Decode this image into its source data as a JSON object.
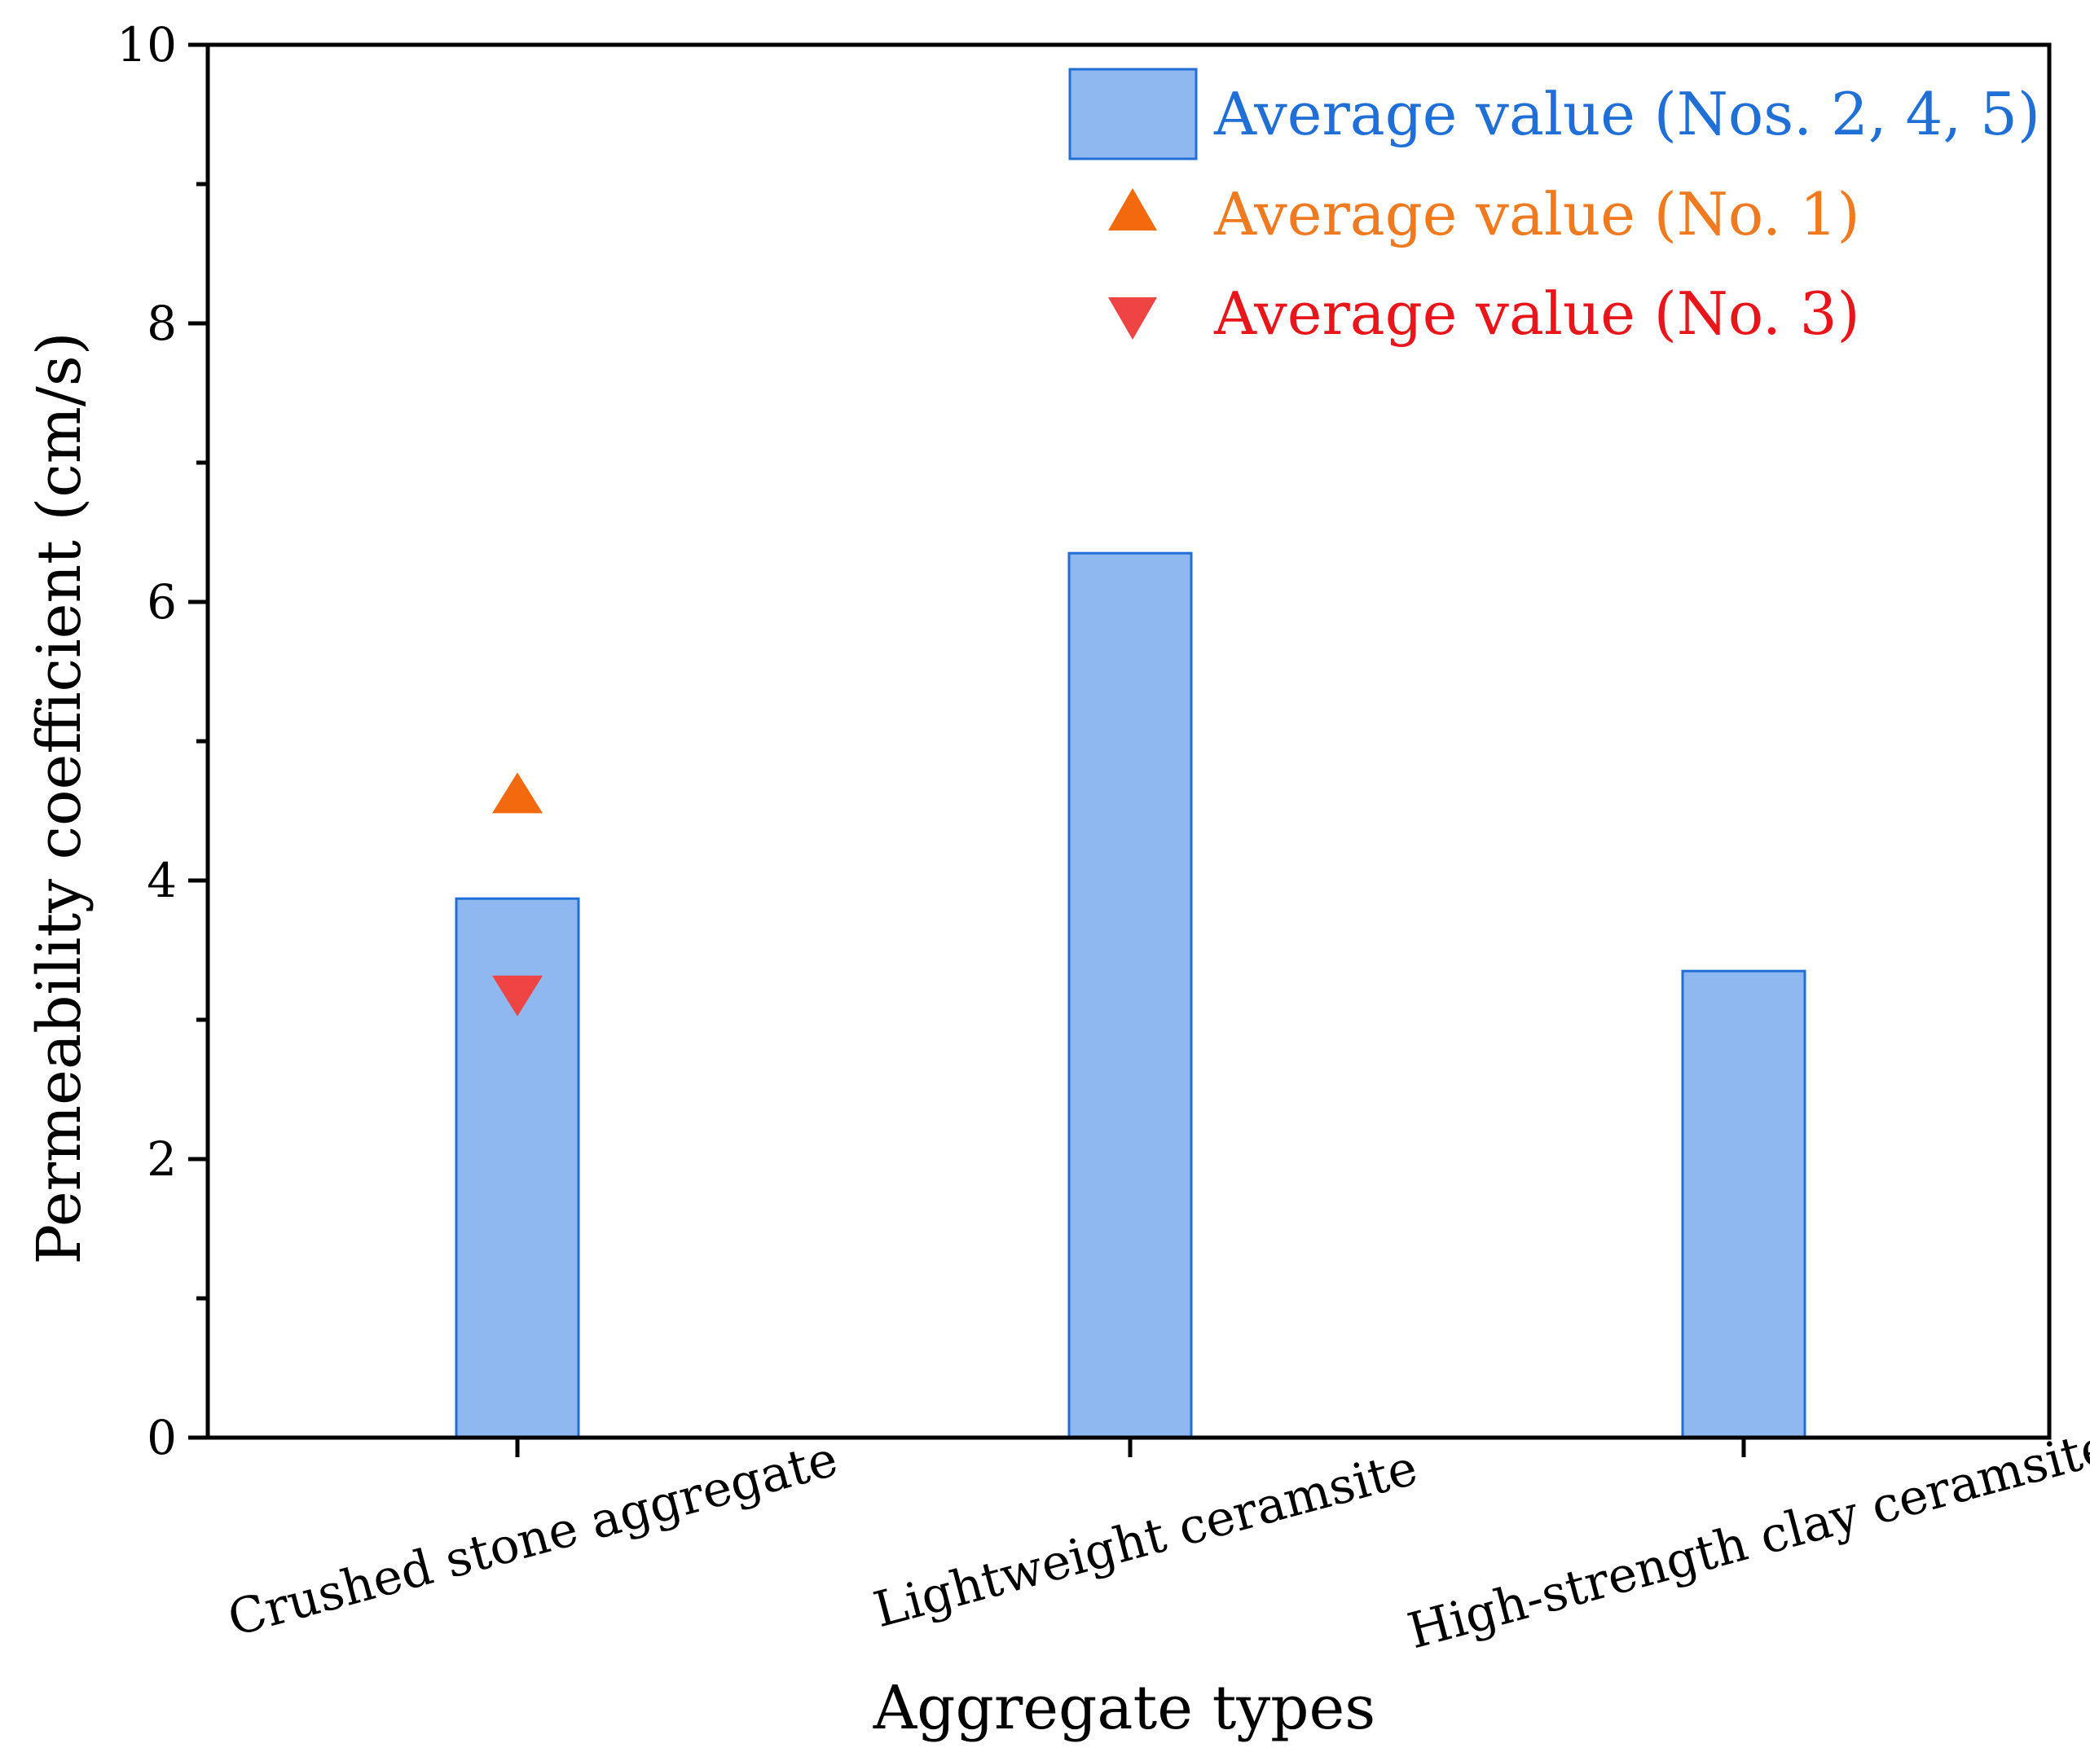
{
  "chart_data": {
    "type": "bar",
    "title": "",
    "xlabel": "Aggregate types",
    "ylabel": "Permeability coefficient (cm/s)",
    "ylim": [
      0,
      10
    ],
    "yticks": [
      0,
      2,
      4,
      6,
      8,
      10
    ],
    "y_minor_step": 1,
    "grid": false,
    "legend_position": "top-right",
    "categories": [
      "Crushed stone aggregate",
      "Lightweight ceramsite",
      "High-strength clay ceramsite"
    ],
    "series": [
      {
        "name": "Average value (Nos. 2, 4, 5)",
        "kind": "bar",
        "marker": "rect",
        "color": "#8FB8F0",
        "edge_color": "#1F6FD6",
        "legend_color": "#1F6FD6",
        "values": [
          3.87,
          6.35,
          3.35
        ]
      },
      {
        "name": "Average value (No. 1)",
        "kind": "scatter",
        "marker": "triangle-up",
        "color": "#F36A0E",
        "legend_color": "#F07A1F",
        "values": [
          4.6,
          null,
          null
        ]
      },
      {
        "name": "Average value (No. 3)",
        "kind": "scatter",
        "marker": "triangle-down",
        "color": "#EE4444",
        "legend_color": "#E8161B",
        "values": [
          3.2,
          null,
          null
        ]
      }
    ]
  }
}
